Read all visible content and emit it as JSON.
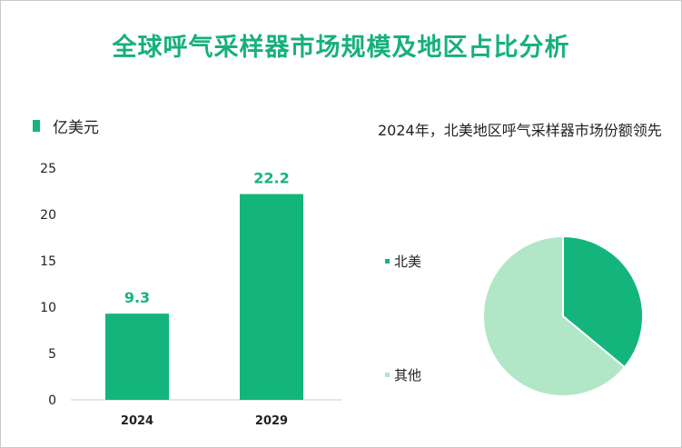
{
  "title": "全球呼气采样器市场规模及地区占比分析",
  "colors": {
    "accent": "#13b57c",
    "accent_light": "#b1e6c7",
    "title": "#17b07b"
  },
  "chart_data": [
    {
      "type": "bar",
      "unit_label": "亿美元",
      "categories": [
        "2024",
        "2029"
      ],
      "values": [
        9.3,
        22.2
      ],
      "value_labels": [
        "9.3",
        "22.2"
      ],
      "ylim": [
        0,
        25
      ],
      "yticks": [
        0,
        5,
        10,
        15,
        20,
        25
      ],
      "grid": false
    },
    {
      "type": "pie",
      "note": "2024年，北美地区呼气采样器市场份额领先",
      "labels": [
        "北美",
        "其他"
      ],
      "values": [
        36,
        64
      ],
      "colors": [
        "#13b57c",
        "#b1e6c7"
      ]
    }
  ]
}
